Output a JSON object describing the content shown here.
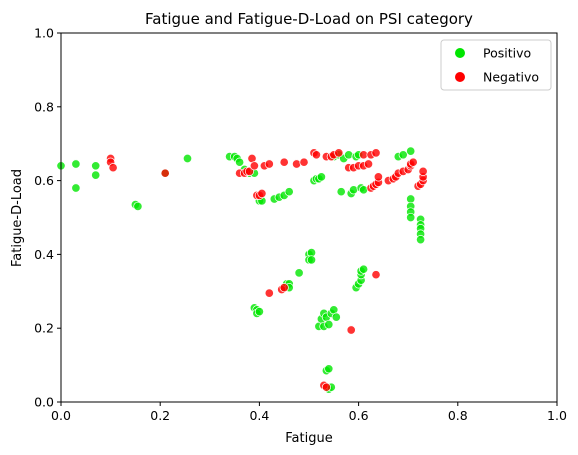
{
  "chart_data": {
    "type": "scatter",
    "title": "Fatigue and Fatigue-D-Load on PSI category",
    "xlabel": "Fatigue",
    "ylabel": "Fatigue-D-Load",
    "xlim": [
      0.0,
      1.0
    ],
    "ylim": [
      0.0,
      1.0
    ],
    "xticks": [
      "0.0",
      "0.2",
      "0.4",
      "0.6",
      "0.8",
      "1.0"
    ],
    "yticks": [
      "0.0",
      "0.2",
      "0.4",
      "0.6",
      "0.8",
      "1.0"
    ],
    "grid": false,
    "legend_position": "top-right",
    "series": [
      {
        "name": "Positivo",
        "color": "#00e600",
        "points": [
          [
            0.0,
            0.64
          ],
          [
            0.03,
            0.645
          ],
          [
            0.03,
            0.58
          ],
          [
            0.07,
            0.64
          ],
          [
            0.07,
            0.615
          ],
          [
            0.15,
            0.535
          ],
          [
            0.155,
            0.53
          ],
          [
            0.21,
            0.62
          ],
          [
            0.255,
            0.66
          ],
          [
            0.34,
            0.665
          ],
          [
            0.35,
            0.665
          ],
          [
            0.355,
            0.66
          ],
          [
            0.36,
            0.65
          ],
          [
            0.37,
            0.63
          ],
          [
            0.38,
            0.62
          ],
          [
            0.39,
            0.62
          ],
          [
            0.4,
            0.545
          ],
          [
            0.405,
            0.545
          ],
          [
            0.39,
            0.255
          ],
          [
            0.395,
            0.25
          ],
          [
            0.395,
            0.24
          ],
          [
            0.4,
            0.245
          ],
          [
            0.43,
            0.55
          ],
          [
            0.44,
            0.555
          ],
          [
            0.45,
            0.56
          ],
          [
            0.46,
            0.57
          ],
          [
            0.45,
            0.31
          ],
          [
            0.455,
            0.32
          ],
          [
            0.46,
            0.32
          ],
          [
            0.46,
            0.31
          ],
          [
            0.48,
            0.35
          ],
          [
            0.5,
            0.4
          ],
          [
            0.505,
            0.405
          ],
          [
            0.5,
            0.385
          ],
          [
            0.505,
            0.385
          ],
          [
            0.51,
            0.6
          ],
          [
            0.515,
            0.605
          ],
          [
            0.52,
            0.605
          ],
          [
            0.525,
            0.61
          ],
          [
            0.52,
            0.205
          ],
          [
            0.525,
            0.225
          ],
          [
            0.53,
            0.205
          ],
          [
            0.53,
            0.24
          ],
          [
            0.535,
            0.23
          ],
          [
            0.54,
            0.21
          ],
          [
            0.545,
            0.24
          ],
          [
            0.55,
            0.25
          ],
          [
            0.555,
            0.23
          ],
          [
            0.535,
            0.085
          ],
          [
            0.54,
            0.09
          ],
          [
            0.535,
            0.04
          ],
          [
            0.54,
            0.035
          ],
          [
            0.545,
            0.04
          ],
          [
            0.55,
            0.665
          ],
          [
            0.56,
            0.67
          ],
          [
            0.565,
            0.57
          ],
          [
            0.57,
            0.66
          ],
          [
            0.58,
            0.67
          ],
          [
            0.585,
            0.565
          ],
          [
            0.59,
            0.575
          ],
          [
            0.595,
            0.665
          ],
          [
            0.6,
            0.67
          ],
          [
            0.595,
            0.31
          ],
          [
            0.6,
            0.32
          ],
          [
            0.605,
            0.33
          ],
          [
            0.605,
            0.345
          ],
          [
            0.605,
            0.355
          ],
          [
            0.61,
            0.36
          ],
          [
            0.605,
            0.58
          ],
          [
            0.61,
            0.575
          ],
          [
            0.68,
            0.665
          ],
          [
            0.69,
            0.67
          ],
          [
            0.705,
            0.68
          ],
          [
            0.705,
            0.55
          ],
          [
            0.705,
            0.53
          ],
          [
            0.705,
            0.515
          ],
          [
            0.705,
            0.5
          ],
          [
            0.725,
            0.495
          ],
          [
            0.725,
            0.48
          ],
          [
            0.725,
            0.47
          ],
          [
            0.725,
            0.455
          ],
          [
            0.725,
            0.44
          ]
        ]
      },
      {
        "name": "Negativo",
        "color": "#ff0000",
        "points": [
          [
            0.1,
            0.66
          ],
          [
            0.1,
            0.65
          ],
          [
            0.105,
            0.635
          ],
          [
            0.21,
            0.62
          ],
          [
            0.36,
            0.62
          ],
          [
            0.37,
            0.62
          ],
          [
            0.375,
            0.625
          ],
          [
            0.38,
            0.625
          ],
          [
            0.385,
            0.66
          ],
          [
            0.39,
            0.64
          ],
          [
            0.395,
            0.56
          ],
          [
            0.4,
            0.56
          ],
          [
            0.405,
            0.565
          ],
          [
            0.41,
            0.64
          ],
          [
            0.42,
            0.645
          ],
          [
            0.42,
            0.295
          ],
          [
            0.445,
            0.305
          ],
          [
            0.45,
            0.31
          ],
          [
            0.45,
            0.65
          ],
          [
            0.475,
            0.645
          ],
          [
            0.49,
            0.65
          ],
          [
            0.51,
            0.675
          ],
          [
            0.515,
            0.67
          ],
          [
            0.535,
            0.665
          ],
          [
            0.545,
            0.665
          ],
          [
            0.55,
            0.67
          ],
          [
            0.56,
            0.675
          ],
          [
            0.53,
            0.045
          ],
          [
            0.535,
            0.04
          ],
          [
            0.585,
            0.195
          ],
          [
            0.58,
            0.635
          ],
          [
            0.59,
            0.635
          ],
          [
            0.6,
            0.64
          ],
          [
            0.61,
            0.64
          ],
          [
            0.62,
            0.645
          ],
          [
            0.61,
            0.67
          ],
          [
            0.625,
            0.67
          ],
          [
            0.635,
            0.675
          ],
          [
            0.625,
            0.58
          ],
          [
            0.63,
            0.585
          ],
          [
            0.635,
            0.59
          ],
          [
            0.64,
            0.595
          ],
          [
            0.64,
            0.61
          ],
          [
            0.635,
            0.345
          ],
          [
            0.66,
            0.6
          ],
          [
            0.67,
            0.605
          ],
          [
            0.675,
            0.61
          ],
          [
            0.68,
            0.62
          ],
          [
            0.69,
            0.625
          ],
          [
            0.7,
            0.63
          ],
          [
            0.705,
            0.64
          ],
          [
            0.705,
            0.645
          ],
          [
            0.71,
            0.65
          ],
          [
            0.72,
            0.585
          ],
          [
            0.725,
            0.59
          ],
          [
            0.73,
            0.6
          ],
          [
            0.73,
            0.61
          ],
          [
            0.73,
            0.625
          ]
        ]
      }
    ]
  }
}
